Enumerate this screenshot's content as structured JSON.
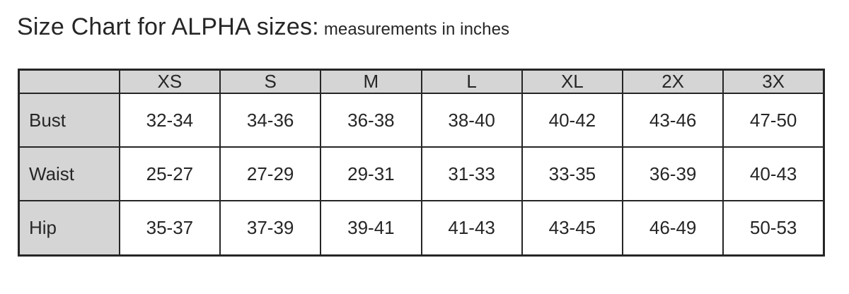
{
  "page_title": {
    "main": "Size Chart for ALPHA sizes:",
    "sub": "measurements in inches"
  },
  "colors": {
    "header_bg": "#d5d5d5",
    "cell_bg": "#ffffff",
    "border": "#262626",
    "text": "#262626"
  },
  "chart_data": {
    "type": "table",
    "title": "Size Chart for ALPHA sizes:",
    "subtitle": "measurements in inches",
    "units": "inches",
    "columns": [
      "",
      "XS",
      "S",
      "M",
      "L",
      "XL",
      "2X",
      "3X"
    ],
    "rows": [
      [
        "Bust",
        "32-34",
        "34-36",
        "36-38",
        "38-40",
        "40-42",
        "43-46",
        "47-50"
      ],
      [
        "Waist",
        "25-27",
        "27-29",
        "29-31",
        "31-33",
        "33-35",
        "36-39",
        "40-43"
      ],
      [
        "Hip",
        "35-37",
        "37-39",
        "39-41",
        "41-43",
        "43-45",
        "46-49",
        "50-53"
      ]
    ]
  }
}
